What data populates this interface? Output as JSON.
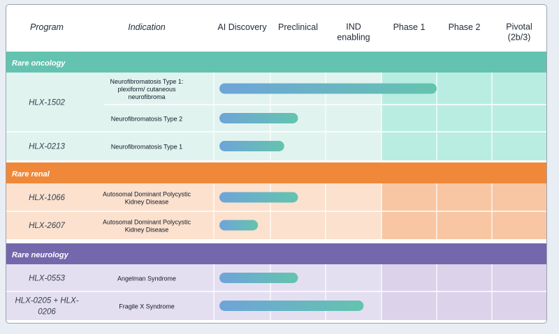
{
  "chart_data": {
    "type": "bar",
    "stages": [
      "AI Discovery",
      "Preclinical",
      "IND enabling",
      "Phase 1",
      "Phase 2",
      "Pivotal (2b/3)"
    ],
    "stage_labels": [
      [
        "AI Discovery"
      ],
      [
        "Preclinical"
      ],
      [
        "IND",
        "enabling"
      ],
      [
        "Phase 1"
      ],
      [
        "Phase 2"
      ],
      [
        "Pivotal",
        "(2b/3)"
      ]
    ],
    "column_headers": {
      "program": "Program",
      "indication": "Indication"
    },
    "groups": [
      {
        "name": "Rare oncology",
        "color": "#63c3b0",
        "rows": [
          {
            "program": "HLX-1502",
            "indication": [
              "Neurofibromatosis Type 1:",
              "plexiform/ cutaneous",
              "neurofibroma"
            ],
            "progress": 4.0
          },
          {
            "program": "",
            "indication": [
              "Neurofibromatosis Type 2"
            ],
            "progress": 1.5
          },
          {
            "program": "HLX-0213",
            "indication": [
              "Neurofibromatosis Type 1"
            ],
            "progress": 1.25
          }
        ]
      },
      {
        "name": "Rare renal",
        "color": "#f0883a",
        "rows": [
          {
            "program": "HLX-1066",
            "indication": [
              "Autosomal Dominant Polycystic",
              "Kidney Disease"
            ],
            "progress": 1.5
          },
          {
            "program": "HLX-2607",
            "indication": [
              "Autosomal Dominant Polycystic",
              "Kidney Disease"
            ],
            "progress": 0.78
          }
        ]
      },
      {
        "name": "Rare neurology",
        "color": "#7467ab",
        "rows": [
          {
            "program": "HLX-0553",
            "indication": [
              "Angelman Syndrome"
            ],
            "progress": 1.5
          },
          {
            "program": [
              "HLX-0205 + HLX-",
              "0206"
            ],
            "indication": [
              "Fragile X Syndrome"
            ],
            "progress": 2.68
          }
        ]
      }
    ]
  },
  "colors": {
    "bar_start": "#6ea4d9",
    "bar_end": "#64c4ae",
    "oncology_light": "#e1f3ef",
    "oncology_later": "#b9ede1",
    "renal_light": "#fbe1ce",
    "renal_later": "#f8c6a3",
    "neurology_light": "#e4dff0",
    "neurology_later": "#dcd3ea"
  }
}
